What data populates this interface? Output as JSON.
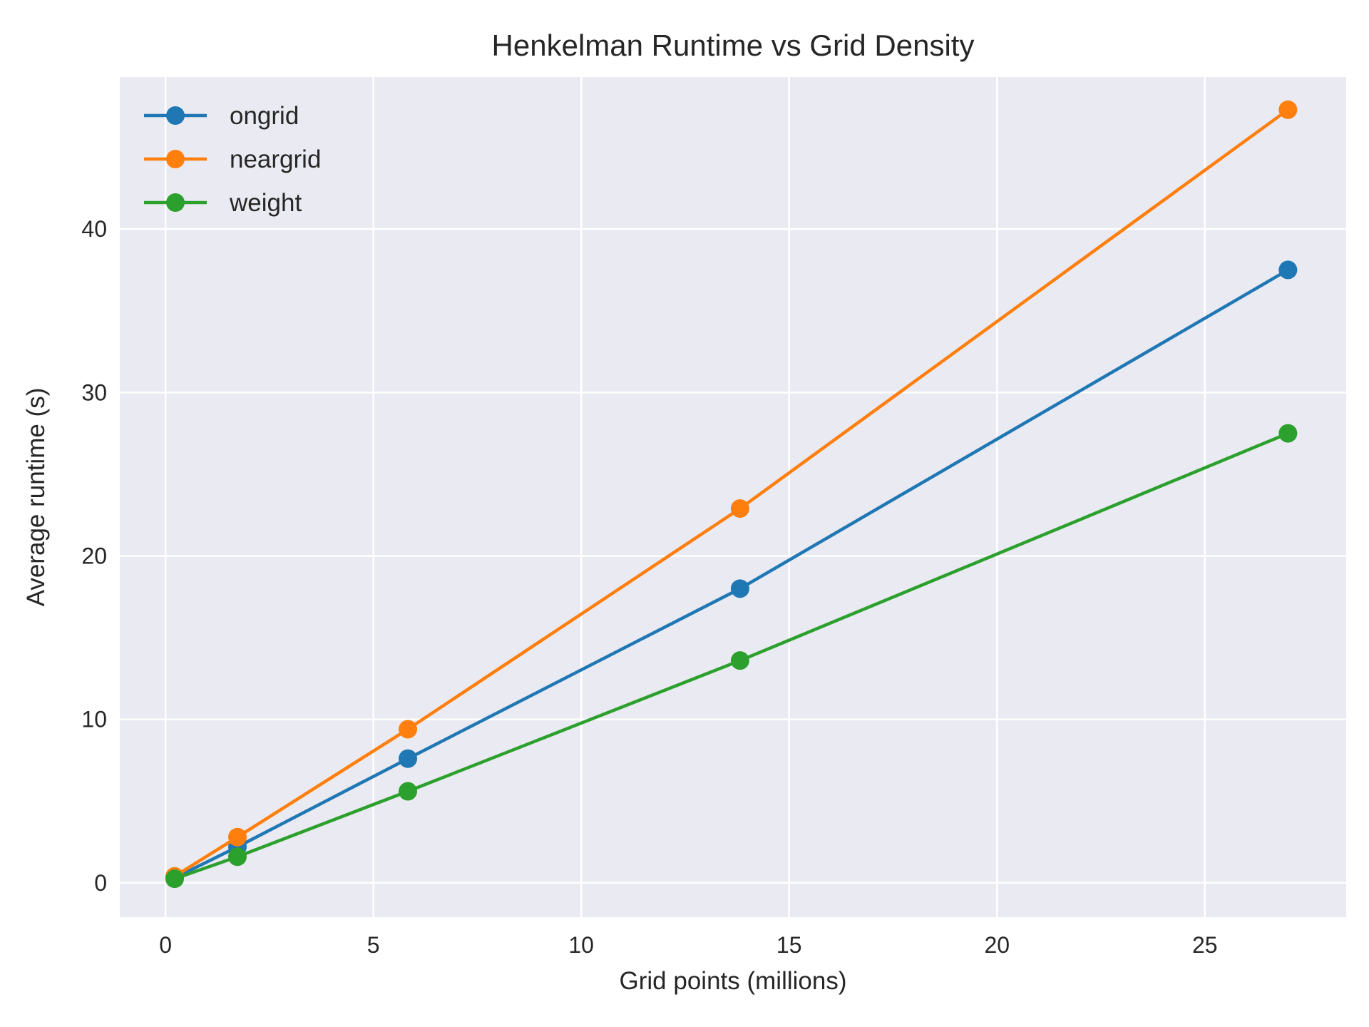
{
  "chart_data": {
    "type": "line",
    "title": "Henkelman Runtime vs Grid Density",
    "xlabel": "Grid points (millions)",
    "ylabel": "Average runtime (s)",
    "xlim": [
      -1.1,
      28.4
    ],
    "ylim": [
      -2.1,
      49.3
    ],
    "xticks": [
      0,
      5,
      10,
      15,
      20,
      25
    ],
    "yticks": [
      0,
      10,
      20,
      30,
      40
    ],
    "xtick_labels": [
      "0",
      "5",
      "10",
      "15",
      "20",
      "25"
    ],
    "ytick_labels": [
      "0",
      "10",
      "20",
      "30",
      "40"
    ],
    "grid": true,
    "legend_position": "upper-left",
    "background": "#EAEAF2",
    "x": [
      0.22,
      1.73,
      5.83,
      13.82,
      27.0
    ],
    "series": [
      {
        "name": "ongrid",
        "color": "#1F77B4",
        "values": [
          0.3,
          2.2,
          7.6,
          18.0,
          37.5
        ]
      },
      {
        "name": "neargrid",
        "color": "#FF7F0E",
        "values": [
          0.4,
          2.8,
          9.4,
          22.9,
          47.3
        ]
      },
      {
        "name": "weight",
        "color": "#2CA02C",
        "values": [
          0.25,
          1.6,
          5.6,
          13.6,
          27.5
        ]
      }
    ]
  }
}
